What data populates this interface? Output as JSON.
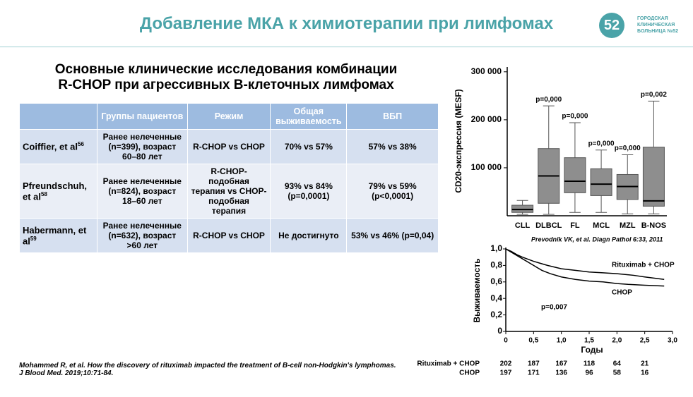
{
  "header": {
    "title": "Добавление МКА к химиотерапии при лимфомах",
    "logo": {
      "mark": "52",
      "lines": [
        "ГОРОДСКАЯ",
        "КЛИНИЧЕСКАЯ",
        "БОЛЬНИЦА №52"
      ]
    }
  },
  "heading": [
    "Основные клинические исследования комбинации",
    "R-CHOP при агрессивных В-клеточных лимфомах"
  ],
  "table": {
    "header": [
      "Группы пациентов",
      "Режим",
      "Общая выживаемость",
      "ВБП"
    ],
    "rows": [
      [
        {
          "text": "Coiffier, et al",
          "sup": "56"
        },
        "Ранее нелеченные (n=399), возраст 60–80 лет",
        "R-CHOP vs CHOP",
        "70% vs 57%",
        "57% vs 38%"
      ],
      [
        {
          "text": "Pfreundschuh, et al",
          "sup": "58"
        },
        "Ранее нелеченные (n=824), возраст 18–60 лет",
        "R-CHOP-подобная терапия vs CHOP-подобная терапия",
        "93% vs 84% (p=0,0001)",
        "79% vs 59% (p<0,0001)"
      ],
      [
        {
          "text": "Habermann, et al",
          "sup": "59"
        },
        "Ранее нелеченные (n=632), возраст >60 лет",
        "R-CHOP vs CHOP",
        "Не достигнуто",
        "53% vs 46% (p=0,04)"
      ]
    ]
  },
  "footnote": "Mohammed R, et al. How the discovery of rituximab impacted the treatment of B-cell non-Hodgkin's lymphomas. J Blood Med. 2019;10:71-84.",
  "chart_data": [
    {
      "type": "box",
      "ylabel": "CD20-экспрессия (MESF)",
      "source": "Prevodnik VK, et al. Diagn Pathol 6:33, 2011",
      "categories": [
        "CLL",
        "DLBCL",
        "FL",
        "MCL",
        "MZL",
        "B-NOS"
      ],
      "min": [
        3000,
        3000,
        7000,
        7000,
        4000,
        4000
      ],
      "q1": [
        7000,
        26000,
        48000,
        42000,
        34000,
        20000
      ],
      "median": [
        13000,
        83000,
        72000,
        66000,
        61000,
        31000
      ],
      "q3": [
        22000,
        140000,
        121000,
        98000,
        86000,
        143000
      ],
      "max": [
        32000,
        229000,
        194000,
        137000,
        127000,
        239000
      ],
      "p_labels": [
        null,
        "p=0,000",
        "p=0,000",
        "p=0,000",
        "p=0,000",
        "p=0,002"
      ],
      "color": "#8e8e8e",
      "ylim": [
        0,
        310000
      ],
      "yticks": [
        {
          "value": 100000,
          "label": "100 000"
        },
        {
          "value": 200000,
          "label": "200 000"
        },
        {
          "value": 300000,
          "label": "300 000"
        }
      ]
    },
    {
      "type": "line",
      "ylabel": "Выживаемость",
      "xlabel": "Годы",
      "annotation": "p=0,007",
      "series": [
        {
          "name": "Rituximab + CHOP",
          "color": "#000000",
          "x": [
            0,
            0.1,
            0.2,
            0.3,
            0.5,
            0.75,
            1.0,
            1.25,
            1.5,
            1.75,
            2.0,
            2.3,
            2.5,
            2.85
          ],
          "values": [
            1,
            0.97,
            0.93,
            0.9,
            0.85,
            0.8,
            0.76,
            0.74,
            0.72,
            0.71,
            0.7,
            0.68,
            0.66,
            0.63
          ]
        },
        {
          "name": "CHOP",
          "color": "#000000",
          "x": [
            0,
            0.1,
            0.25,
            0.5,
            0.65,
            0.8,
            1.0,
            1.25,
            1.5,
            1.75,
            2.0,
            2.2,
            2.5,
            2.85
          ],
          "values": [
            1,
            0.96,
            0.9,
            0.8,
            0.74,
            0.7,
            0.66,
            0.63,
            0.61,
            0.6,
            0.58,
            0.57,
            0.56,
            0.55
          ]
        }
      ],
      "at_risk": [
        [
          202,
          187,
          167,
          118,
          64,
          21
        ],
        [
          197,
          171,
          136,
          96,
          58,
          16
        ]
      ],
      "xlim": [
        0,
        3
      ],
      "ylim": [
        0,
        1
      ],
      "xticks": [
        0,
        {
          "value": 0.5,
          "label": "0,5"
        },
        {
          "value": 1,
          "label": "1,0"
        },
        {
          "value": 1.5,
          "label": "1,5"
        },
        {
          "value": 2,
          "label": "2,0"
        },
        {
          "value": 2.5,
          "label": "2,5"
        },
        {
          "value": 3,
          "label": "3,0"
        }
      ],
      "yticks": [
        0,
        {
          "value": 0.2,
          "label": "0,2"
        },
        {
          "value": 0.4,
          "label": "0,4"
        },
        {
          "value": 0.6,
          "label": "0,6"
        },
        {
          "value": 0.8,
          "label": "0,8"
        },
        {
          "value": 1,
          "label": "1,0"
        }
      ]
    }
  ]
}
